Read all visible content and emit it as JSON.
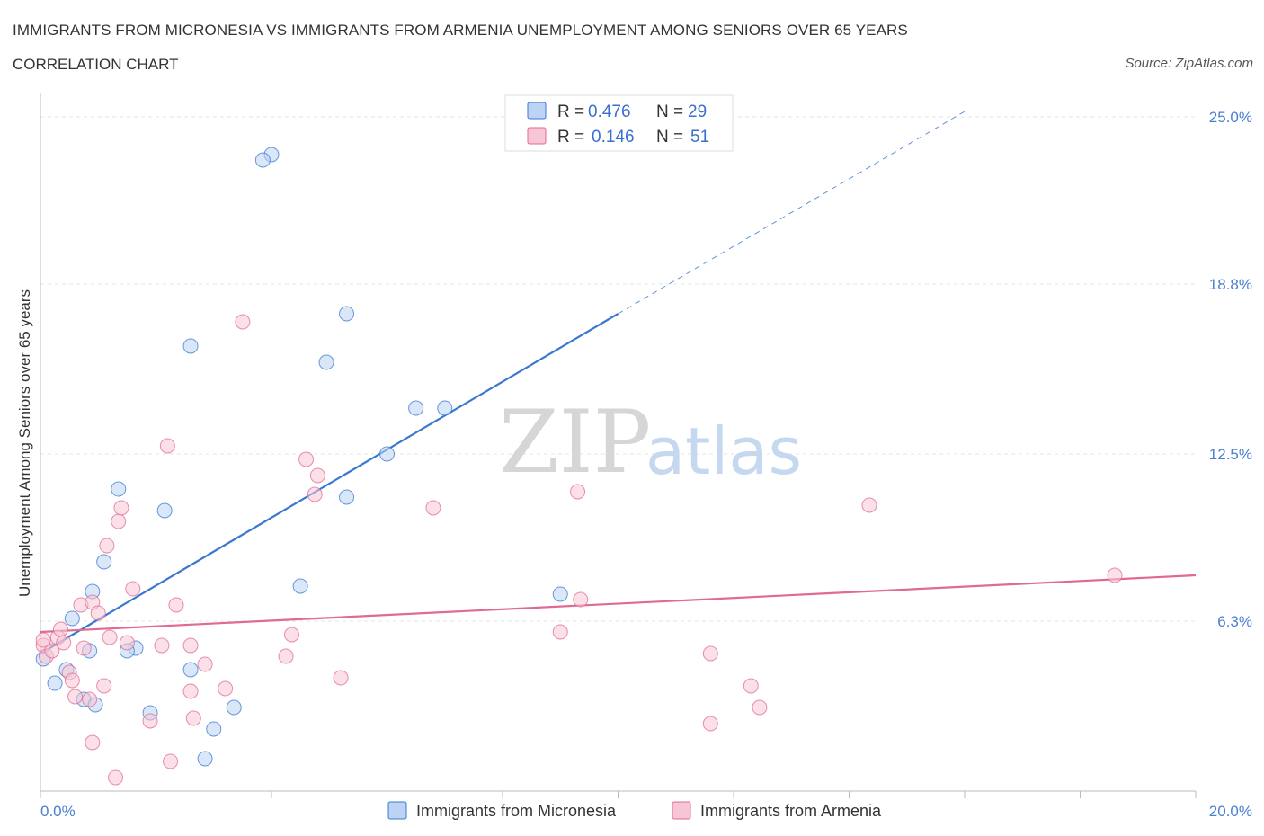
{
  "title": "IMMIGRANTS FROM MICRONESIA VS IMMIGRANTS FROM ARMENIA UNEMPLOYMENT AMONG SENIORS OVER 65 YEARS",
  "subtitle": "CORRELATION CHART",
  "source": "Source: ZipAtlas.com",
  "watermark": {
    "zip": "ZIP",
    "atlas": "atlas"
  },
  "colors": {
    "micronesia": "#3a78d0",
    "armenia": "#e06a94",
    "micronesia_fill": "#bcd3f3",
    "armenia_fill": "#f7c6d6"
  },
  "legend": {
    "rows": [
      {
        "r_label": "R =",
        "r_value": "0.476",
        "n_label": "N =",
        "n_value": "29"
      },
      {
        "r_label": "R =",
        "r_value": "0.146",
        "n_label": "N =",
        "n_value": "51"
      }
    ]
  },
  "chart_data": {
    "type": "scatter",
    "xlabel": "",
    "ylabel": "Unemployment Among Seniors over 65 years",
    "xlim": [
      0,
      20
    ],
    "ylim": [
      0,
      25.6
    ],
    "x_tick_labels": [
      "0.0%",
      "20.0%"
    ],
    "y_ticks": [
      6.3,
      12.5,
      18.8,
      25.0
    ],
    "y_tick_labels": [
      "6.3%",
      "12.5%",
      "18.8%",
      "25.0%"
    ],
    "legend_placement": "top-center",
    "grid": true,
    "series": [
      {
        "name": "Immigrants from Micronesia",
        "R": 0.476,
        "N": 29,
        "points": [
          [
            0.05,
            4.9
          ],
          [
            0.25,
            4.0
          ],
          [
            0.45,
            4.5
          ],
          [
            0.55,
            6.4
          ],
          [
            0.75,
            3.4
          ],
          [
            0.9,
            7.4
          ],
          [
            0.95,
            3.2
          ],
          [
            1.35,
            11.2
          ],
          [
            1.1,
            8.5
          ],
          [
            1.65,
            5.3
          ],
          [
            1.9,
            2.9
          ],
          [
            2.15,
            10.4
          ],
          [
            1.5,
            5.2
          ],
          [
            2.6,
            16.5
          ],
          [
            2.6,
            4.5
          ],
          [
            2.85,
            1.2
          ],
          [
            3.35,
            3.1
          ],
          [
            4.0,
            23.6
          ],
          [
            3.85,
            23.4
          ],
          [
            4.5,
            7.6
          ],
          [
            4.95,
            15.9
          ],
          [
            5.3,
            17.7
          ],
          [
            5.3,
            10.9
          ],
          [
            6.0,
            12.5
          ],
          [
            6.5,
            14.2
          ],
          [
            7.0,
            14.2
          ],
          [
            9.0,
            7.3
          ],
          [
            3.0,
            2.3
          ],
          [
            0.85,
            5.2
          ]
        ],
        "trend": {
          "x0": 0,
          "y0": 5.1,
          "x1": 10.0,
          "y1": 17.7,
          "dash_x1": 16.0,
          "dash_y1": 25.2
        }
      },
      {
        "name": "Immigrants from Armenia",
        "R": 0.146,
        "N": 51,
        "points": [
          [
            0.05,
            5.4
          ],
          [
            0.1,
            5.0
          ],
          [
            0.2,
            5.2
          ],
          [
            0.3,
            5.7
          ],
          [
            0.35,
            6.0
          ],
          [
            0.4,
            5.5
          ],
          [
            0.5,
            4.4
          ],
          [
            0.55,
            4.1
          ],
          [
            0.6,
            3.5
          ],
          [
            0.7,
            6.9
          ],
          [
            0.75,
            5.3
          ],
          [
            0.85,
            3.4
          ],
          [
            0.9,
            7.0
          ],
          [
            0.9,
            1.8
          ],
          [
            1.0,
            6.6
          ],
          [
            1.1,
            3.9
          ],
          [
            1.15,
            9.1
          ],
          [
            1.2,
            5.7
          ],
          [
            1.3,
            0.5
          ],
          [
            1.35,
            10.0
          ],
          [
            1.4,
            10.5
          ],
          [
            1.5,
            5.5
          ],
          [
            1.6,
            7.5
          ],
          [
            1.9,
            2.6
          ],
          [
            2.1,
            5.4
          ],
          [
            2.2,
            12.8
          ],
          [
            2.25,
            1.1
          ],
          [
            2.35,
            6.9
          ],
          [
            2.6,
            3.7
          ],
          [
            2.6,
            5.4
          ],
          [
            2.65,
            2.7
          ],
          [
            2.85,
            4.7
          ],
          [
            3.2,
            3.8
          ],
          [
            3.5,
            17.4
          ],
          [
            4.25,
            5.0
          ],
          [
            4.35,
            5.8
          ],
          [
            4.6,
            12.3
          ],
          [
            4.75,
            11.0
          ],
          [
            4.8,
            11.7
          ],
          [
            5.2,
            4.2
          ],
          [
            6.8,
            10.5
          ],
          [
            9.0,
            5.9
          ],
          [
            9.3,
            11.1
          ],
          [
            9.35,
            7.1
          ],
          [
            11.6,
            2.5
          ],
          [
            11.6,
            5.1
          ],
          [
            12.3,
            3.9
          ],
          [
            12.45,
            3.1
          ],
          [
            14.35,
            10.6
          ],
          [
            18.6,
            8.0
          ],
          [
            0.05,
            5.6
          ]
        ],
        "trend": {
          "x0": 0,
          "y0": 5.9,
          "x1": 20.0,
          "y1": 8.0
        }
      }
    ]
  }
}
